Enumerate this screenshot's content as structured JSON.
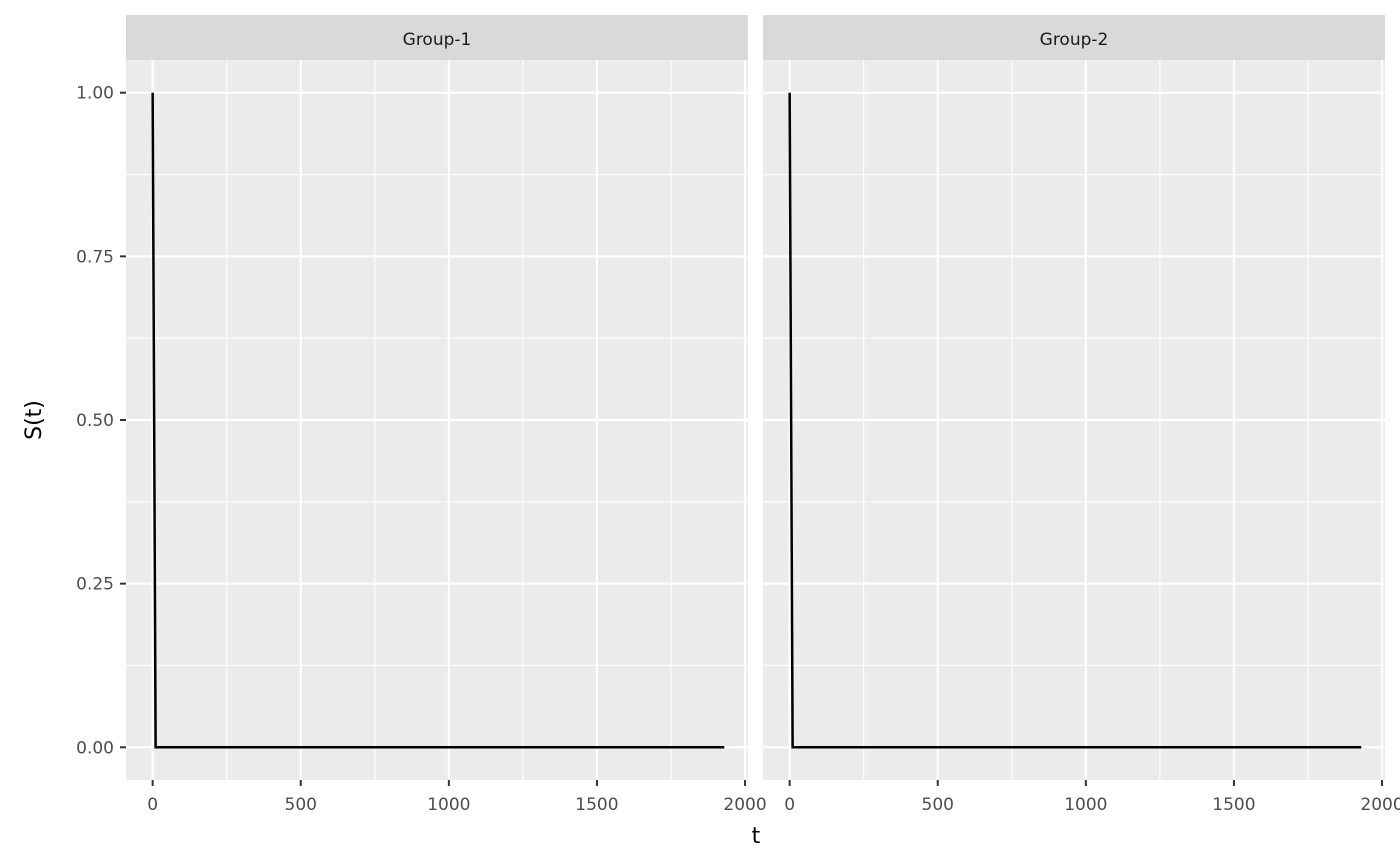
{
  "chart_data": {
    "type": "line",
    "xlabel": "t",
    "ylabel": "S(t)",
    "xlim": [
      -90,
      2010
    ],
    "ylim": [
      -0.05,
      1.05
    ],
    "x_ticks": [
      0,
      500,
      1000,
      1500,
      2000
    ],
    "x_tick_labels": [
      "0",
      "500",
      "1000",
      "1500",
      "2000"
    ],
    "x_minor_ticks": [
      250,
      750,
      1250,
      1750
    ],
    "y_ticks": [
      0,
      0.25,
      0.5,
      0.75,
      1.0
    ],
    "y_tick_labels": [
      "0.00",
      "0.25",
      "0.50",
      "0.75",
      "1.00"
    ],
    "y_minor_ticks": [
      0.125,
      0.375,
      0.625,
      0.875
    ],
    "grid": true,
    "panels": [
      {
        "label": "Group-1",
        "x": [
          0,
          10,
          1930
        ],
        "y": [
          1.0,
          0.0,
          0.0
        ]
      },
      {
        "label": "Group-2",
        "x": [
          0,
          10,
          1930
        ],
        "y": [
          1.0,
          0.0,
          0.0
        ]
      }
    ],
    "colors": {
      "panel_bg": "#ebebeb",
      "strip_bg": "#d9d9d9",
      "grid": "#ffffff",
      "line": "#000000",
      "tick": "#333333"
    }
  }
}
